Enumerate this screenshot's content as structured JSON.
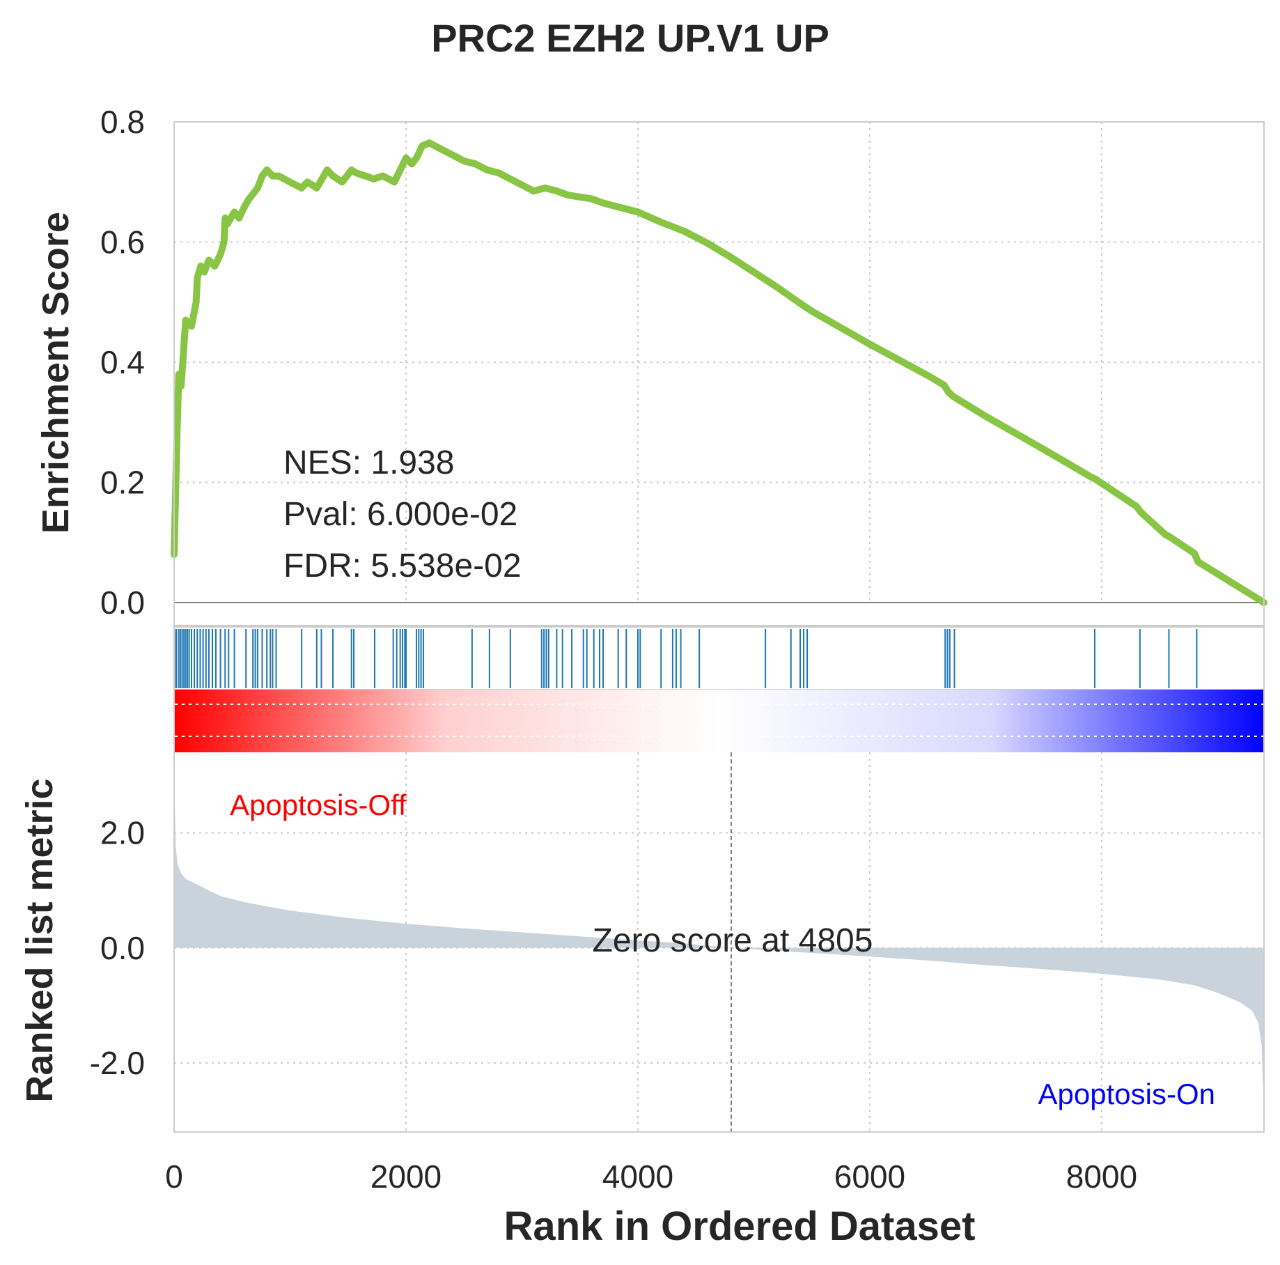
{
  "chart_data": {
    "type": "line",
    "title": "PRC2 EZH2 UP.V1 UP",
    "xlabel": "Rank in Ordered Dataset",
    "xlim": [
      0,
      9400
    ],
    "x_ticks": [
      "0",
      "2000",
      "4000",
      "6000",
      "8000"
    ],
    "grid": true,
    "colors": {
      "enrichment_line": "#88c544",
      "hit_lines": "#1f77b4",
      "metric_fill": "#c8d3dc",
      "heat_positive": "#ff0000",
      "heat_negative": "#0000ff",
      "phenotype_pos": "#ff0000",
      "phenotype_neg": "#0000ff"
    },
    "enrichment": {
      "ylabel": "Enrichment Score",
      "ylim": [
        0,
        0.8
      ],
      "y_ticks": [
        "0.0",
        "0.2",
        "0.4",
        "0.6",
        "0.8"
      ],
      "series": [
        {
          "x": [
            0,
            25,
            40,
            60,
            75,
            100,
            150,
            190,
            200,
            230,
            260,
            300,
            350,
            400,
            430,
            440,
            460,
            520,
            560,
            610,
            640,
            680,
            720,
            760,
            800,
            850,
            900,
            1000,
            1100,
            1150,
            1230,
            1320,
            1370,
            1450,
            1530,
            1570,
            1650,
            1720,
            1800,
            1900,
            1950,
            2000,
            2050,
            2090,
            2140,
            2200,
            2300,
            2400,
            2500,
            2600,
            2700,
            2800,
            2900,
            3000,
            3100,
            3200,
            3300,
            3400,
            3500,
            3600,
            3700,
            3800,
            3900,
            4000,
            4200,
            4400,
            4600,
            4800,
            5000,
            5200,
            5400,
            5500,
            6000,
            6500,
            6640,
            6680,
            6720,
            7000,
            7500,
            7900,
            7950,
            8300,
            8340,
            8550,
            8580,
            8800,
            8830,
            9400
          ],
          "y": [
            0.08,
            0.28,
            0.38,
            0.36,
            0.4,
            0.47,
            0.46,
            0.5,
            0.54,
            0.56,
            0.55,
            0.57,
            0.56,
            0.58,
            0.6,
            0.64,
            0.63,
            0.65,
            0.64,
            0.66,
            0.67,
            0.68,
            0.69,
            0.71,
            0.72,
            0.71,
            0.71,
            0.7,
            0.69,
            0.7,
            0.69,
            0.72,
            0.71,
            0.7,
            0.72,
            0.715,
            0.71,
            0.705,
            0.71,
            0.7,
            0.72,
            0.74,
            0.73,
            0.74,
            0.76,
            0.765,
            0.755,
            0.745,
            0.735,
            0.73,
            0.72,
            0.715,
            0.705,
            0.695,
            0.685,
            0.69,
            0.685,
            0.678,
            0.675,
            0.672,
            0.665,
            0.66,
            0.655,
            0.65,
            0.633,
            0.618,
            0.598,
            0.575,
            0.55,
            0.525,
            0.498,
            0.485,
            0.43,
            0.378,
            0.362,
            0.35,
            0.343,
            0.31,
            0.255,
            0.21,
            0.205,
            0.16,
            0.15,
            0.113,
            0.11,
            0.082,
            0.068,
            0.0
          ]
        }
      ],
      "annotations": {
        "nes": "NES: 1.938",
        "pval": "Pval: 6.000e-02",
        "fdr": "FDR: 5.538e-02"
      }
    },
    "hits": [
      5,
      20,
      40,
      55,
      70,
      85,
      100,
      115,
      130,
      150,
      175,
      200,
      225,
      250,
      275,
      300,
      330,
      360,
      400,
      440,
      470,
      520,
      620,
      680,
      700,
      720,
      760,
      800,
      830,
      850,
      880,
      1100,
      1230,
      1270,
      1370,
      1530,
      1550,
      1730,
      1890,
      1920,
      1950,
      1970,
      1990,
      2000,
      2090,
      2110,
      2130,
      2150,
      2570,
      2720,
      2900,
      3170,
      3190,
      3210,
      3230,
      3300,
      3350,
      3430,
      3530,
      3560,
      3620,
      3670,
      3700,
      3830,
      3900,
      4000,
      4020,
      4200,
      4300,
      4330,
      4370,
      4530,
      5100,
      5320,
      5400,
      5430,
      5460,
      6650,
      6670,
      6690,
      6730,
      7940,
      8330,
      8580,
      8820
    ],
    "heatmap": {
      "type": "heatmap",
      "gradient": [
        "#ff0000",
        "#ffd0d0",
        "#ffffff",
        "#d8d8ff",
        "#0000ff"
      ]
    },
    "metric": {
      "ylabel": "Ranked list metric",
      "ylim": [
        -3.2,
        3.4
      ],
      "y_ticks": [
        "-2.0",
        "0.0",
        "2.0"
      ],
      "type": "area",
      "x": [
        0,
        5,
        15,
        30,
        60,
        100,
        150,
        200,
        300,
        400,
        600,
        800,
        1000,
        1500,
        2000,
        2500,
        3000,
        3500,
        4000,
        4400,
        4805,
        5200,
        6000,
        6500,
        7000,
        7500,
        8000,
        8500,
        8800,
        9000,
        9200,
        9300,
        9350,
        9380,
        9390,
        9400
      ],
      "y": [
        3.3,
        2.6,
        1.75,
        1.45,
        1.3,
        1.2,
        1.15,
        1.1,
        1.0,
        0.9,
        0.8,
        0.72,
        0.65,
        0.52,
        0.42,
        0.34,
        0.27,
        0.2,
        0.13,
        0.08,
        0.0,
        -0.05,
        -0.15,
        -0.22,
        -0.3,
        -0.37,
        -0.45,
        -0.55,
        -0.65,
        -0.78,
        -0.95,
        -1.1,
        -1.3,
        -1.7,
        -2.3,
        -2.8
      ],
      "zero_cross": 4805,
      "zero_label": "Zero score at 4805",
      "pos_label": "Apoptosis-Off",
      "neg_label": "Apoptosis-On"
    }
  }
}
